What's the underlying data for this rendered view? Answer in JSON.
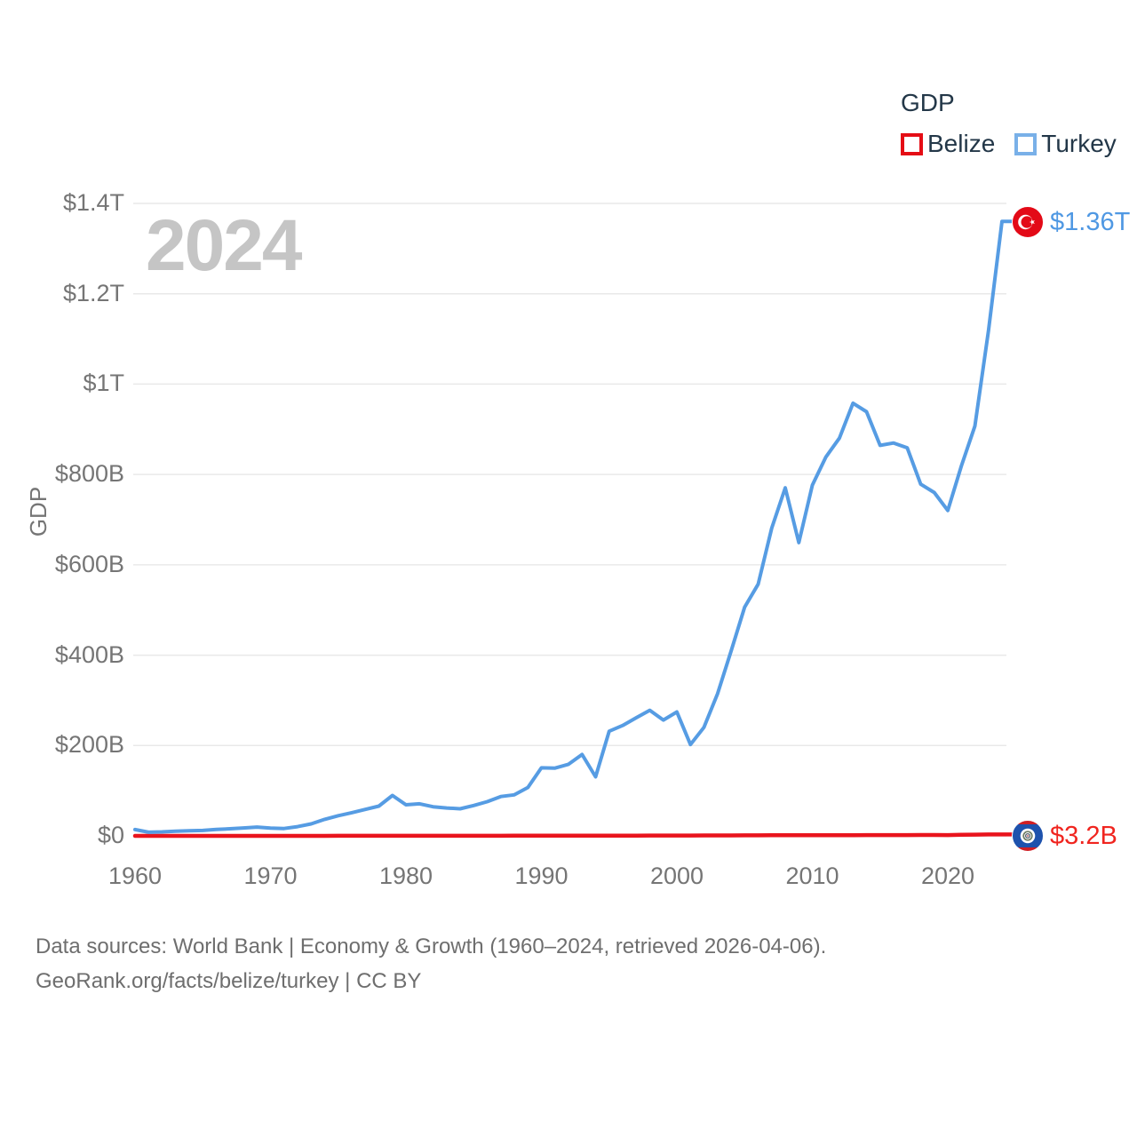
{
  "legend": {
    "title": "GDP",
    "items": [
      {
        "label": "Belize",
        "color": "#e50d15"
      },
      {
        "label": "Turkey",
        "color": "#79b0e8"
      }
    ]
  },
  "watermark": "2024",
  "axes": {
    "y_title": "GDP",
    "y_tick_labels": [
      "$0",
      "$200B",
      "$400B",
      "$600B",
      "$800B",
      "$1T",
      "$1.2T",
      "$1.4T"
    ],
    "x_tick_labels": [
      "1960",
      "1970",
      "1980",
      "1990",
      "2000",
      "2010",
      "2020"
    ]
  },
  "end_labels": {
    "turkey": {
      "value": "$1.36T",
      "flag": "turkey-flag"
    },
    "belize": {
      "value": "$3.2B",
      "flag": "belize-flag"
    }
  },
  "footer": {
    "line1": "Data sources: World Bank | Economy & Growth (1960–2024, retrieved 2026-04-06).",
    "line2": "GeoRank.org/facts/belize/turkey | CC BY"
  },
  "colors": {
    "belize_line": "#e9141d",
    "turkey_line": "#569ce3",
    "belize_swatch": "#e50d15",
    "turkey_swatch": "#79b0e8",
    "turkey_end_label": "#4f98e3",
    "belize_end_label": "#f0251f",
    "gridline": "#e9e9e9",
    "tick_text": "#757575",
    "legend_text": "#233748",
    "watermark_text": "#c5c5c5",
    "footer_text": "#6e6e6e"
  },
  "chart_data": {
    "type": "line",
    "title": "GDP",
    "ylabel": "GDP",
    "y_unit": "USD billions",
    "ylim": [
      0,
      1400
    ],
    "grid": true,
    "legend_position": "top-right",
    "x": [
      1960,
      1961,
      1962,
      1963,
      1964,
      1965,
      1966,
      1967,
      1968,
      1969,
      1970,
      1971,
      1972,
      1973,
      1974,
      1975,
      1976,
      1977,
      1978,
      1979,
      1980,
      1981,
      1982,
      1983,
      1984,
      1985,
      1986,
      1987,
      1988,
      1989,
      1990,
      1991,
      1992,
      1993,
      1994,
      1995,
      1996,
      1997,
      1998,
      1999,
      2000,
      2001,
      2002,
      2003,
      2004,
      2005,
      2006,
      2007,
      2008,
      2009,
      2010,
      2011,
      2012,
      2013,
      2014,
      2015,
      2016,
      2017,
      2018,
      2019,
      2020,
      2021,
      2022,
      2023,
      2024
    ],
    "xticks": [
      1960,
      1970,
      1980,
      1990,
      2000,
      2010,
      2020
    ],
    "yticks": [
      {
        "value": 0,
        "label": "$0"
      },
      {
        "value": 200,
        "label": "$200B"
      },
      {
        "value": 400,
        "label": "$400B"
      },
      {
        "value": 600,
        "label": "$600B"
      },
      {
        "value": 800,
        "label": "$800B"
      },
      {
        "value": 1000,
        "label": "$1T"
      },
      {
        "value": 1200,
        "label": "$1.2T"
      },
      {
        "value": 1400,
        "label": "$1.4T"
      }
    ],
    "series": [
      {
        "name": "Belize",
        "color": "#e9141d",
        "end_label": "$3.2B",
        "values": [
          0.028,
          0.03,
          0.032,
          0.034,
          0.037,
          0.039,
          0.042,
          0.045,
          0.048,
          0.051,
          0.053,
          0.058,
          0.066,
          0.076,
          0.095,
          0.111,
          0.106,
          0.124,
          0.137,
          0.167,
          0.198,
          0.208,
          0.196,
          0.2,
          0.213,
          0.222,
          0.25,
          0.293,
          0.343,
          0.386,
          0.413,
          0.455,
          0.522,
          0.581,
          0.595,
          0.62,
          0.643,
          0.673,
          0.708,
          0.774,
          0.832,
          0.872,
          0.932,
          0.988,
          1.055,
          1.115,
          1.217,
          1.291,
          1.369,
          1.339,
          1.397,
          1.487,
          1.574,
          1.624,
          1.709,
          1.745,
          1.79,
          1.862,
          1.97,
          1.976,
          1.789,
          2.42,
          2.703,
          3.05,
          3.218
        ]
      },
      {
        "name": "Turkey",
        "color": "#569ce3",
        "end_label": "$1.36T",
        "values": [
          13.99,
          7.99,
          8.92,
          10.36,
          11.18,
          11.95,
          14.12,
          15.66,
          17.5,
          19.47,
          17.09,
          16.27,
          20.42,
          26.55,
          36.6,
          44.63,
          51.28,
          58.68,
          65.93,
          89.39,
          68.79,
          70.95,
          64.55,
          61.68,
          59.94,
          67.23,
          75.73,
          87.17,
          90.85,
          107.14,
          150.68,
          150.03,
          158.46,
          180.17,
          130.69,
          231.55,
          244.5,
          261.46,
          278.0,
          256.39,
          274.3,
          202.14,
          240.25,
          314.59,
          408.87,
          506.31,
          557.06,
          681.32,
          770.45,
          649.29,
          776.01,
          838.76,
          880.56,
          957.8,
          938.93,
          864.31,
          869.68,
          858.99,
          778.47,
          759.94,
          720.29,
          819.04,
          907.12,
          1118.25,
          1360.0
        ]
      }
    ]
  }
}
